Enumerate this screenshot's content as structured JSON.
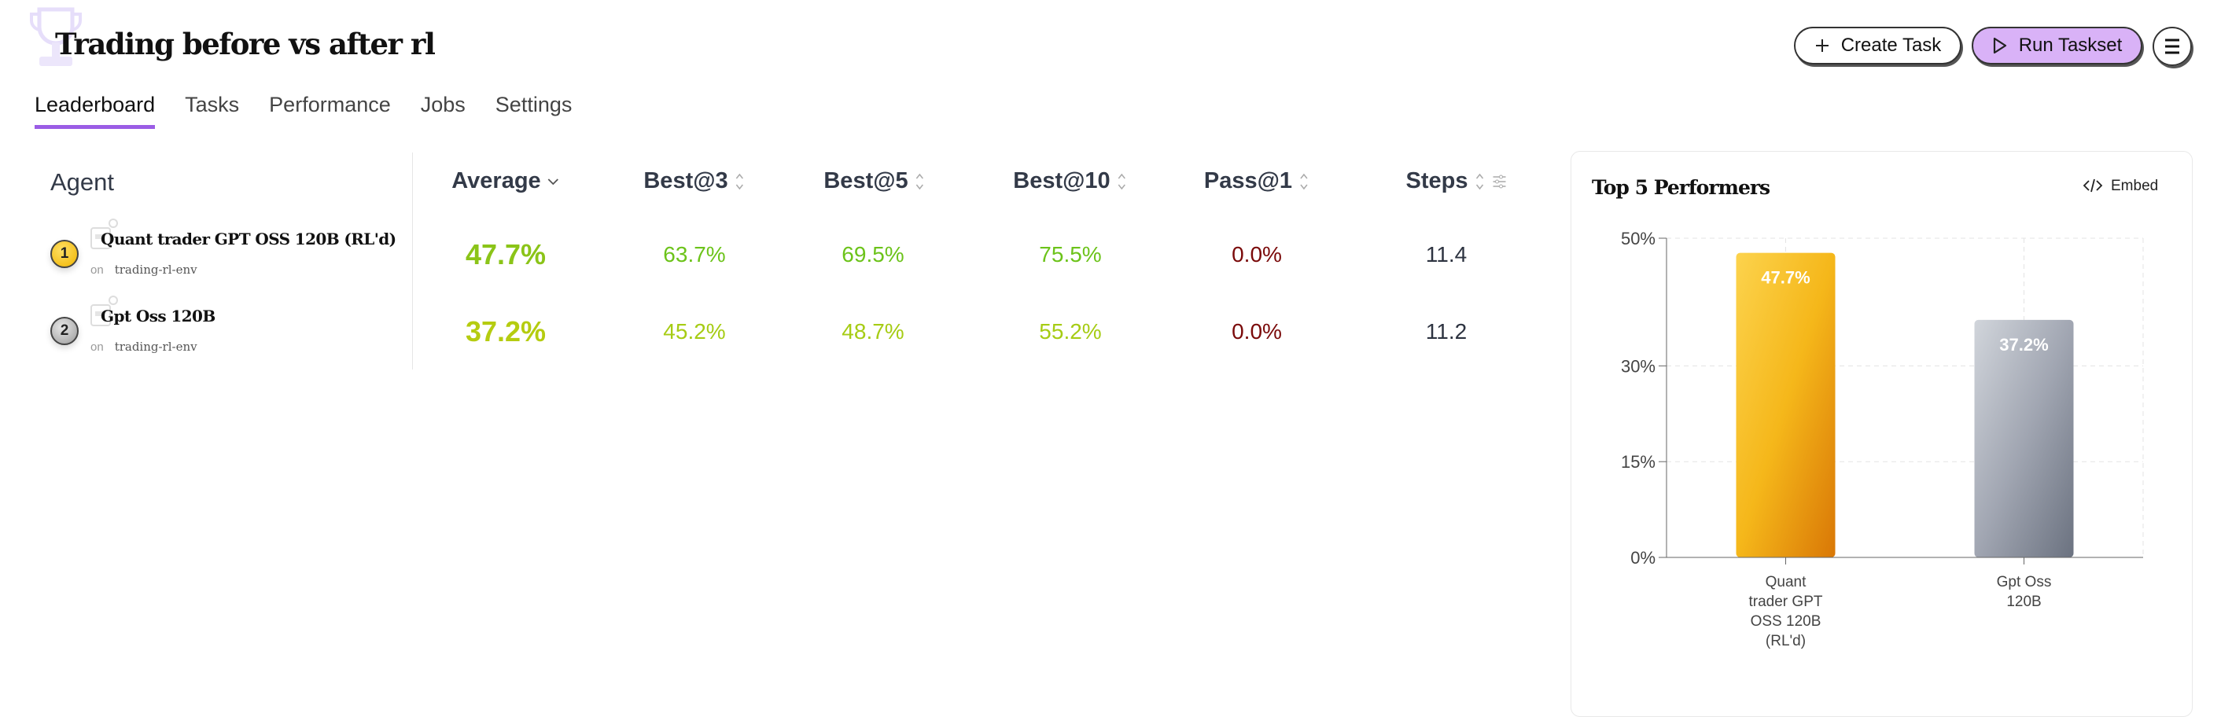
{
  "header": {
    "title": "Trading before vs after rl",
    "create_task": "Create Task",
    "run_taskset": "Run Taskset"
  },
  "tabs": [
    {
      "label": "Leaderboard",
      "active": true
    },
    {
      "label": "Tasks"
    },
    {
      "label": "Performance"
    },
    {
      "label": "Jobs"
    },
    {
      "label": "Settings"
    }
  ],
  "table": {
    "columns": {
      "agent": "Agent",
      "average": "Average",
      "best3": "Best@3",
      "best5": "Best@5",
      "best10": "Best@10",
      "pass1": "Pass@1",
      "steps": "Steps"
    },
    "rows": [
      {
        "rank": "1",
        "name": "Quant trader GPT OSS 120B (RL'd)",
        "on": "on",
        "env": "trading-rl-env",
        "average": "47.7%",
        "best3": "63.7%",
        "best5": "69.5%",
        "best10": "75.5%",
        "pass1": "0.0%",
        "steps": "11.4"
      },
      {
        "rank": "2",
        "name": "Gpt Oss 120B",
        "on": "on",
        "env": "trading-rl-env",
        "average": "37.2%",
        "best3": "45.2%",
        "best5": "48.7%",
        "best10": "55.2%",
        "pass1": "0.0%",
        "steps": "11.2"
      }
    ]
  },
  "colors": {
    "accent": "#9b5de5",
    "run_button": "#d9b2f7",
    "gold": "#f5c518",
    "silver": "#b8b8b8",
    "fail": "#7a0a0a"
  },
  "chart_card": {
    "title": "Top 5 Performers",
    "embed": "Embed"
  },
  "chart_data": {
    "type": "bar",
    "categories": [
      "Quant trader GPT OSS 120B (RL'd)",
      "Gpt Oss 120B"
    ],
    "category_lines": [
      [
        "Quant",
        "trader GPT",
        "OSS 120B",
        "(RL'd)"
      ],
      [
        "Gpt Oss",
        "120B"
      ]
    ],
    "values": [
      47.7,
      37.2
    ],
    "data_labels": [
      "47.7%",
      "37.2%"
    ],
    "bar_colors": [
      [
        "#fcd34d",
        "#f5b71a",
        "#d97706"
      ],
      [
        "#d1d5db",
        "#a1a6b2",
        "#6b7280"
      ]
    ],
    "yticks": [
      0,
      15,
      30,
      50
    ],
    "ytick_labels": [
      "0%",
      "15%",
      "30%",
      "50%"
    ],
    "ylim": [
      0,
      50
    ],
    "grid": true
  }
}
